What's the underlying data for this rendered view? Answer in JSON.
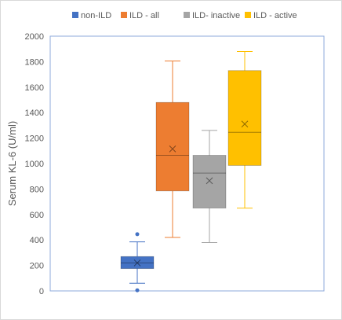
{
  "chart_data": {
    "type": "box",
    "title": "",
    "xlabel": "",
    "ylabel": "Serum KL-6  (U/ml)",
    "ylim": [
      0,
      2000
    ],
    "yticks": [
      0,
      200,
      400,
      600,
      800,
      1000,
      1200,
      1400,
      1600,
      1800,
      2000
    ],
    "grid": false,
    "legend_position": "top",
    "series": [
      {
        "name": "non-ILD",
        "color": "#4472c4",
        "min": 60,
        "q1": 175,
        "median": 220,
        "q3": 270,
        "max": 385,
        "mean": 220,
        "outliers": [
          445,
          5
        ]
      },
      {
        "name": "ILD - all",
        "color": "#ed7d31",
        "min": 420,
        "q1": 785,
        "median": 1065,
        "q3": 1480,
        "max": 1805,
        "mean": 1115,
        "outliers": []
      },
      {
        "name": "ILD- inactive",
        "color": "#a5a5a5",
        "min": 380,
        "q1": 650,
        "median": 925,
        "q3": 1065,
        "max": 1260,
        "mean": 865,
        "outliers": []
      },
      {
        "name": "ILD - active",
        "color": "#ffc000",
        "min": 650,
        "q1": 985,
        "median": 1245,
        "q3": 1730,
        "max": 1880,
        "mean": 1310,
        "outliers": []
      }
    ]
  }
}
